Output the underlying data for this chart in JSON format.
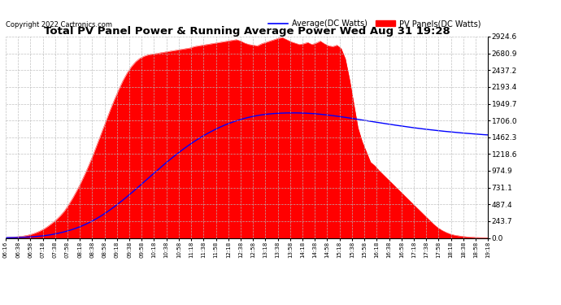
{
  "title": "Total PV Panel Power & Running Average Power Wed Aug 31 19:28",
  "copyright": "Copyright 2022 Cartronics.com",
  "legend_avg": "Average(DC Watts)",
  "legend_pv": "PV Panels(DC Watts)",
  "ymax": 2924.6,
  "ymin": 0.0,
  "yticks": [
    0.0,
    243.7,
    487.4,
    731.1,
    974.9,
    1218.6,
    1462.3,
    1706.0,
    1949.7,
    2193.4,
    2437.2,
    2680.9,
    2924.6
  ],
  "background_color": "#ffffff",
  "grid_color": "#bbbbbb",
  "fill_color": "#ff0000",
  "line_color": "#0000ff",
  "x_labels": [
    "06:16",
    "06:38",
    "06:58",
    "07:18",
    "07:38",
    "07:58",
    "08:18",
    "08:38",
    "08:58",
    "09:18",
    "09:38",
    "09:58",
    "10:18",
    "10:38",
    "10:58",
    "11:18",
    "11:38",
    "11:58",
    "12:18",
    "12:38",
    "12:58",
    "13:18",
    "13:38",
    "13:58",
    "14:18",
    "14:38",
    "14:58",
    "15:18",
    "15:38",
    "15:58",
    "16:18",
    "16:38",
    "16:58",
    "17:18",
    "17:38",
    "17:58",
    "18:18",
    "18:38",
    "18:58",
    "19:18"
  ],
  "pv_values": [
    5,
    8,
    12,
    18,
    25,
    35,
    50,
    70,
    95,
    125,
    165,
    210,
    260,
    320,
    390,
    480,
    580,
    690,
    810,
    940,
    1080,
    1230,
    1390,
    1550,
    1710,
    1870,
    2020,
    2160,
    2290,
    2400,
    2490,
    2560,
    2610,
    2640,
    2660,
    2670,
    2680,
    2690,
    2700,
    2710,
    2720,
    2730,
    2740,
    2750,
    2760,
    2780,
    2790,
    2800,
    2810,
    2820,
    2830,
    2840,
    2850,
    2860,
    2870,
    2880,
    2860,
    2830,
    2810,
    2800,
    2790,
    2820,
    2840,
    2860,
    2880,
    2900,
    2910,
    2880,
    2850,
    2830,
    2810,
    2820,
    2840,
    2810,
    2830,
    2860,
    2820,
    2790,
    2780,
    2800,
    2750,
    2600,
    2300,
    1950,
    1600,
    1400,
    1250,
    1100,
    1050,
    980,
    920,
    860,
    800,
    740,
    680,
    620,
    560,
    500,
    440,
    380,
    320,
    260,
    200,
    150,
    110,
    80,
    55,
    40,
    30,
    22,
    15,
    10,
    7,
    5,
    4,
    3
  ],
  "avg_values": [
    3,
    4,
    5,
    7,
    9,
    12,
    16,
    21,
    27,
    34,
    43,
    54,
    67,
    82,
    99,
    118,
    140,
    164,
    191,
    221,
    254,
    290,
    329,
    371,
    416,
    463,
    512,
    563,
    616,
    670,
    725,
    781,
    837,
    893,
    949,
    1004,
    1059,
    1113,
    1165,
    1216,
    1265,
    1312,
    1357,
    1400,
    1441,
    1480,
    1516,
    1550,
    1582,
    1612,
    1640,
    1665,
    1688,
    1709,
    1728,
    1745,
    1760,
    1773,
    1784,
    1793,
    1800,
    1806,
    1810,
    1813,
    1815,
    1816,
    1816,
    1815,
    1813,
    1810,
    1806,
    1801,
    1795,
    1788,
    1781,
    1773,
    1764,
    1755,
    1746,
    1736,
    1726,
    1716,
    1706,
    1696,
    1686,
    1676,
    1666,
    1656,
    1647,
    1637,
    1628,
    1619,
    1610,
    1601,
    1593,
    1585,
    1577,
    1570,
    1563,
    1556,
    1549,
    1543,
    1537,
    1531,
    1525,
    1520,
    1515,
    1510,
    1505,
    1500,
    1496
  ]
}
